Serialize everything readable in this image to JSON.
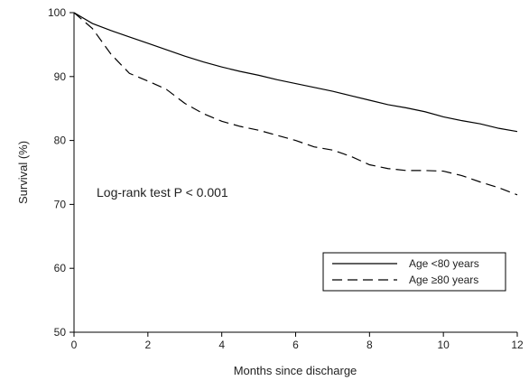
{
  "chart_data": {
    "type": "line",
    "xlabel": "Months since discharge",
    "ylabel": "Survival (%)",
    "annotation": "Log-rank test P < 0.001",
    "x": [
      0,
      0.5,
      1,
      1.5,
      2,
      2.5,
      3,
      3.5,
      4,
      4.5,
      5,
      5.5,
      6,
      6.5,
      7,
      7.5,
      8,
      8.5,
      9,
      9.5,
      10,
      10.5,
      11,
      11.5,
      12
    ],
    "series": [
      {
        "name": "Age <80 years",
        "color": "#000000",
        "dash": "solid",
        "values": [
          100,
          98.3,
          97.2,
          96.2,
          95.2,
          94.2,
          93.2,
          92.3,
          91.5,
          90.8,
          90.2,
          89.5,
          88.9,
          88.3,
          87.7,
          87.0,
          86.3,
          85.6,
          85.1,
          84.5,
          83.7,
          83.1,
          82.6,
          81.9,
          81.4
        ]
      },
      {
        "name": "Age ≥80 years",
        "color": "#000000",
        "dash": "dashed",
        "values": [
          100,
          97.5,
          93.5,
          90.5,
          89.3,
          88.0,
          85.8,
          84.2,
          83.0,
          82.2,
          81.6,
          80.8,
          80.0,
          79.0,
          78.5,
          77.5,
          76.2,
          75.6,
          75.3,
          75.3,
          75.2,
          74.5,
          73.5,
          72.6,
          71.5
        ]
      }
    ],
    "xlim": [
      0,
      12
    ],
    "xticks": [
      0,
      2,
      4,
      6,
      8,
      10,
      12
    ],
    "ylim": [
      50,
      100
    ],
    "yticks": [
      50,
      60,
      70,
      80,
      90,
      100
    ],
    "grid": false,
    "legend": "lower right"
  }
}
